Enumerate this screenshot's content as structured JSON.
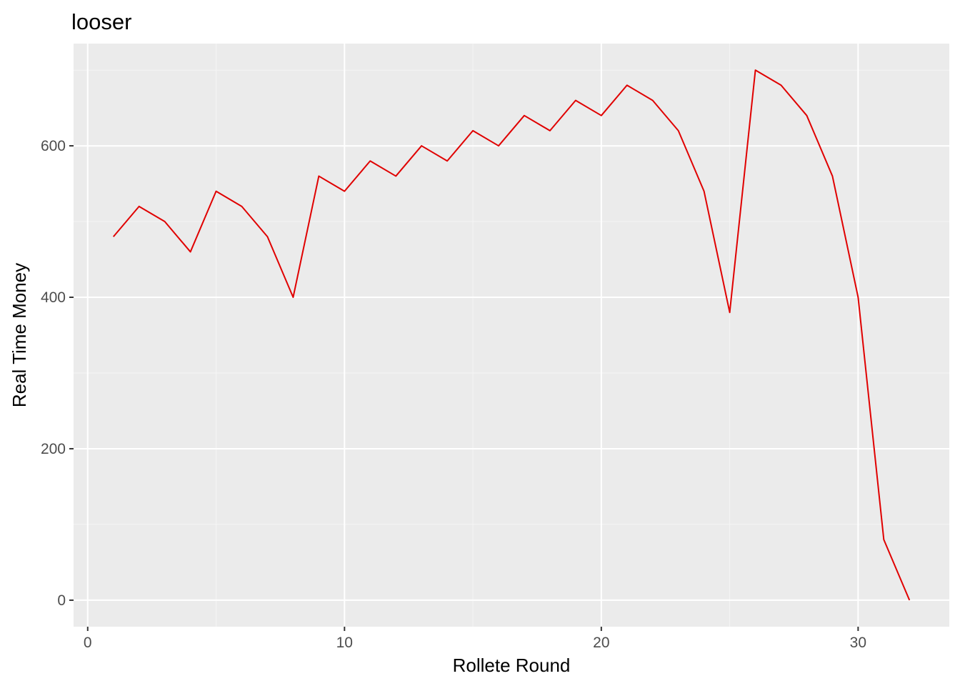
{
  "chart_data": {
    "type": "line",
    "title": "looser",
    "xlabel": "Rollete Round",
    "ylabel": "Real Time Money",
    "xlim": [
      -0.55,
      33.55
    ],
    "ylim": [
      -35,
      735
    ],
    "x_ticks": [
      0,
      10,
      20,
      30
    ],
    "x_minor_ticks": [
      5,
      15,
      25
    ],
    "y_ticks": [
      0,
      200,
      400,
      600
    ],
    "y_minor_ticks": [
      100,
      300,
      500,
      700
    ],
    "grid": true,
    "legend": "none",
    "series": [
      {
        "color": "#e00000",
        "x": [
          1,
          2,
          3,
          4,
          5,
          6,
          7,
          8,
          9,
          10,
          11,
          12,
          13,
          14,
          15,
          16,
          17,
          18,
          19,
          20,
          21,
          22,
          23,
          24,
          25,
          26,
          27,
          28,
          29,
          30,
          31,
          32
        ],
        "y": [
          480,
          520,
          500,
          460,
          540,
          520,
          480,
          400,
          560,
          540,
          580,
          560,
          600,
          580,
          620,
          600,
          640,
          620,
          660,
          640,
          680,
          660,
          620,
          540,
          380,
          700,
          680,
          640,
          560,
          400,
          80,
          0
        ]
      }
    ]
  },
  "colors": {
    "panel_background": "#ebebeb",
    "grid_major": "#ffffff",
    "line": "#e00000"
  }
}
